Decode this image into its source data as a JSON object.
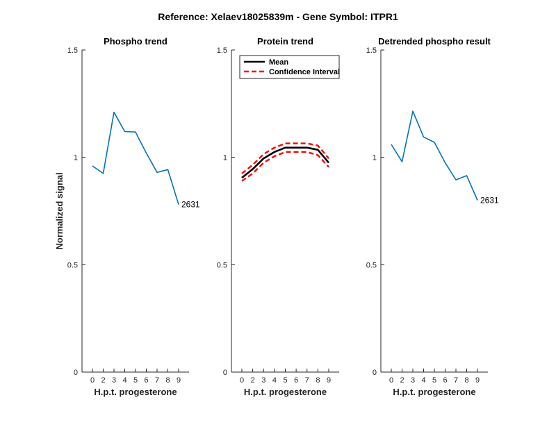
{
  "figure": {
    "title": "Reference:  Xelaev18025839m - Gene Symbol:  ITPR1"
  },
  "chart_data": [
    {
      "type": "line",
      "title": "Phospho trend",
      "xlabel": "H.p.t. progesterone",
      "ylabel": "Normalized signal",
      "categories": [
        "0",
        "2",
        "3",
        "4",
        "5",
        "6",
        "7",
        "8",
        "9"
      ],
      "ylim": [
        0,
        1.5
      ],
      "yticks": [
        "0",
        "0.5",
        "1",
        "1.5"
      ],
      "series": [
        {
          "name": "",
          "color": "#0072BD",
          "style": "solid",
          "values": [
            0.96,
            0.925,
            1.21,
            1.12,
            1.118,
            1.02,
            0.93,
            0.943,
            0.78
          ]
        }
      ],
      "annotation": {
        "text": "2631",
        "x_index": 8,
        "y": 0.78
      },
      "grid": false
    },
    {
      "type": "line",
      "title": "Protein trend",
      "xlabel": "H.p.t. progesterone",
      "ylabel": "",
      "categories": [
        "0",
        "2",
        "3",
        "4",
        "5",
        "6",
        "7",
        "8",
        "9"
      ],
      "ylim": [
        0,
        1.5
      ],
      "yticks": [
        "0",
        "0.5",
        "1",
        "1.5"
      ],
      "legend": {
        "placement": "top-left",
        "entries": [
          "Mean",
          "Confidence Interval"
        ]
      },
      "series": [
        {
          "name": "Mean",
          "color": "#000000",
          "style": "solid",
          "values": [
            0.905,
            0.945,
            0.995,
            1.025,
            1.045,
            1.045,
            1.045,
            1.035,
            0.975
          ]
        },
        {
          "name": "Confidence Interval",
          "color": "#FF0000",
          "style": "dashed",
          "values": [
            0.925,
            0.965,
            1.015,
            1.045,
            1.065,
            1.065,
            1.065,
            1.055,
            0.995
          ]
        },
        {
          "name": "Confidence Interval",
          "color": "#FF0000",
          "style": "dashed",
          "values": [
            0.89,
            0.925,
            0.975,
            1.005,
            1.025,
            1.025,
            1.025,
            1.01,
            0.955
          ]
        }
      ],
      "grid": false
    },
    {
      "type": "line",
      "title": "Detrended phospho result",
      "xlabel": "H.p.t. progesterone",
      "ylabel": "",
      "categories": [
        "0",
        "2",
        "3",
        "4",
        "5",
        "6",
        "7",
        "8",
        "9"
      ],
      "ylim": [
        0,
        1.5
      ],
      "yticks": [
        "0",
        "0.5",
        "1",
        "1.5"
      ],
      "series": [
        {
          "name": "",
          "color": "#0072BD",
          "style": "solid",
          "values": [
            1.06,
            0.98,
            1.215,
            1.095,
            1.07,
            0.975,
            0.895,
            0.915,
            0.8
          ]
        }
      ],
      "annotation": {
        "text": "2631",
        "x_index": 8,
        "y": 0.8
      },
      "grid": false
    }
  ]
}
